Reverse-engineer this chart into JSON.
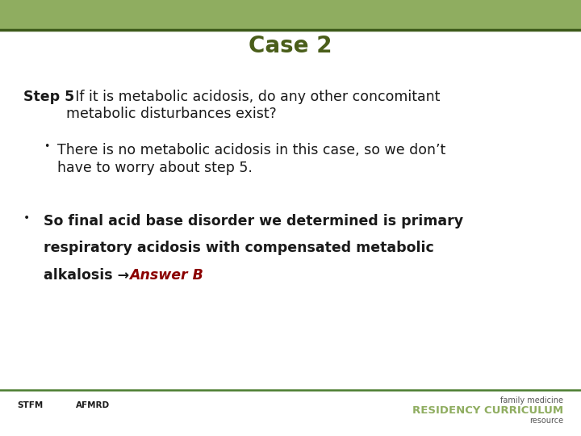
{
  "title": "Case 2",
  "title_color": "#4a5e1a",
  "title_fontsize": 20,
  "header_bar_color": "#8fad60",
  "header_bar_dark": "#3d5a1a",
  "footer_line_color": "#4a7c2f",
  "bg_color": "#ffffff",
  "step5_label": "Step 5",
  "step5_colon": ": If it is metabolic acidosis, do any other concomitant\nmetabolic disturbances exist?",
  "bullet1_text": "There is no metabolic acidosis in this case, so we don’t\nhave to worry about step 5.",
  "bullet2_line1": "So final acid base disorder we determined is primary",
  "bullet2_line2": "respiratory acidosis with compensated metabolic",
  "bullet2_line3_pre": "alkalosis → ",
  "bullet2_italic": "Answer B",
  "text_color": "#1a1a1a",
  "bold_color": "#1a1a1a",
  "answer_color": "#8b0000",
  "main_text_size": 12.5,
  "bold_text_size": 12.5,
  "footer_text_color": "#555555",
  "footer_residency_color": "#8fad60"
}
